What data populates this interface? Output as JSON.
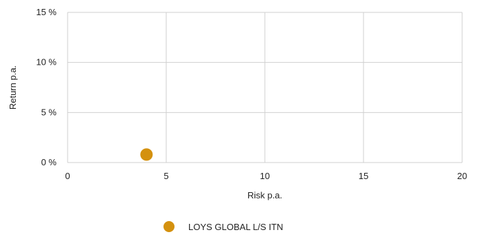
{
  "chart_data": {
    "type": "scatter",
    "title": "",
    "xlabel": "Risk p.a.",
    "ylabel": "Return p.a.",
    "xlim": [
      0,
      20
    ],
    "ylim": [
      0,
      15
    ],
    "x_ticks": [
      0,
      5,
      10,
      15,
      20
    ],
    "x_tick_labels": [
      "0",
      "5",
      "10",
      "15",
      "20"
    ],
    "y_ticks": [
      0,
      5,
      10,
      15
    ],
    "y_tick_labels": [
      "0 %",
      "5 %",
      "10 %",
      "15 %"
    ],
    "grid": true,
    "legend_position": "bottom-center",
    "series": [
      {
        "name": "LOYS GLOBAL L/S ITN",
        "color": "#d4910f",
        "points": [
          {
            "x": 4.0,
            "y": 0.8
          }
        ]
      }
    ]
  }
}
